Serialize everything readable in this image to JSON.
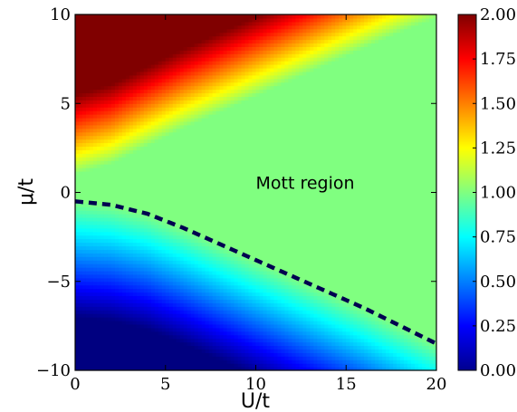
{
  "chart_data": {
    "type": "heatmap",
    "xlabel": "U/t",
    "ylabel": "μ/t",
    "xlim": [
      0,
      20
    ],
    "ylim": [
      -10,
      10
    ],
    "xticks": [
      "0",
      "5",
      "10",
      "15",
      "20"
    ],
    "yticks": [
      "−10",
      "−5",
      "0",
      "5",
      "10"
    ],
    "xtick_values": [
      0,
      5,
      10,
      15,
      20
    ],
    "ytick_values": [
      -10,
      -5,
      0,
      5,
      10
    ],
    "colormap": "jet",
    "color_range": [
      0,
      2
    ],
    "colorbar_ticks": [
      "0.00",
      "0.25",
      "0.50",
      "0.75",
      "1.00",
      "1.25",
      "1.50",
      "1.75",
      "2.00"
    ],
    "colorbar_tick_values": [
      0,
      0.25,
      0.5,
      0.75,
      1.0,
      1.25,
      1.5,
      1.75,
      2.0
    ],
    "annotation": "Mott region",
    "annotation_position": {
      "x": 10,
      "y": 0.5
    },
    "boundary_curve": {
      "style": "dashed",
      "color": "#000050",
      "x": [
        0,
        2,
        4,
        6,
        8,
        10,
        12,
        14,
        16,
        18,
        20
      ],
      "y": [
        -0.5,
        -0.7,
        -1.2,
        -2.0,
        -2.9,
        -3.8,
        -4.7,
        -5.6,
        -6.5,
        -7.5,
        -8.5
      ]
    },
    "upper_boundary": {
      "x": [
        0,
        2,
        4,
        6,
        8,
        10,
        12,
        14,
        16,
        18,
        20
      ],
      "y": [
        1.0,
        1.6,
        2.6,
        3.6,
        4.5,
        5.4,
        6.3,
        7.2,
        8.1,
        9.0,
        9.8
      ]
    },
    "grid": false
  }
}
